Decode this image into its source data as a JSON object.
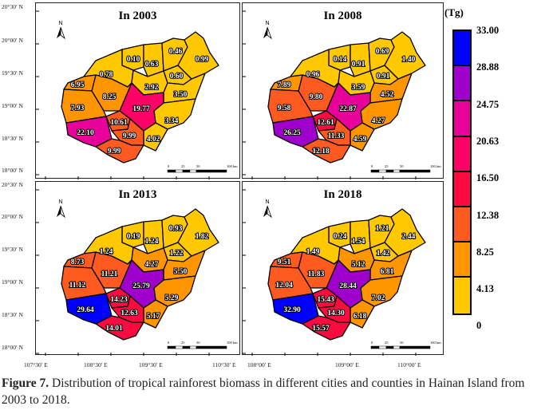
{
  "legend": {
    "unit": "(Tg)",
    "ticks": [
      "33.00",
      "28.88",
      "24.75",
      "20.63",
      "16.50",
      "12.38",
      "8.25",
      "4.13",
      "0"
    ],
    "bins": [
      {
        "max": 4.13,
        "color": "#FFC800"
      },
      {
        "max": 8.25,
        "color": "#FF9500"
      },
      {
        "max": 12.38,
        "color": "#FF5A1F"
      },
      {
        "max": 16.5,
        "color": "#FF0A40"
      },
      {
        "max": 20.63,
        "color": "#FF0066"
      },
      {
        "max": 24.75,
        "color": "#E8009A"
      },
      {
        "max": 28.88,
        "color": "#A000CC"
      },
      {
        "max": 33.0,
        "color": "#0000FF"
      }
    ]
  },
  "north_label": "N",
  "scale_labels": [
    "0",
    "25",
    "50",
    "100 km"
  ],
  "lat_labels": [
    "20°30′ N",
    "20°00′ N",
    "19°30′ N",
    "19°00′ N",
    "18°30′ N",
    "18°00′ N"
  ],
  "lon_labels_left": [
    "107°30′ E",
    "108°30′ E",
    "109°30′ E",
    "110°30′ E"
  ],
  "lon_labels_right": [
    "108°00′ E",
    "109°00′ E",
    "110°00′ E"
  ],
  "panels": [
    {
      "title": "In 2003",
      "values": [
        "0.10",
        "0.63",
        "0.46",
        "0.99",
        "0.78",
        "0.60",
        "2.92",
        "3.50",
        "3.34",
        "4.02",
        "19.77",
        "8.25",
        "6.95",
        "7.93",
        "22.10",
        "10.61",
        "9.99",
        "9.99"
      ]
    },
    {
      "title": "In 2008",
      "values": [
        "0.14",
        "0.91",
        "0.69",
        "1.40",
        "0.96",
        "0.91",
        "3.59",
        "4.52",
        "4.27",
        "4.59",
        "22.87",
        "9.80",
        "7.89",
        "9.58",
        "26.25",
        "12.61",
        "11.33",
        "12.18"
      ]
    },
    {
      "title": "In 2013",
      "values": [
        "0.19",
        "1.24",
        "0.93",
        "1.82",
        "1.24",
        "1.22",
        "4.27",
        "5.50",
        "5.29",
        "5.17",
        "25.79",
        "11.21",
        "8.73",
        "11.12",
        "29.64",
        "14.23",
        "12.63",
        "14.01"
      ]
    },
    {
      "title": "In 2018",
      "values": [
        "0.24",
        "1.54",
        "1.21",
        "2.44",
        "1.49",
        "1.42",
        "5.12",
        "6.81",
        "7.02",
        "6.18",
        "28.44",
        "11.83",
        "9.51",
        "12.04",
        "32.90",
        "15.43",
        "14.30",
        "15.57"
      ]
    }
  ],
  "caption": {
    "label": "Figure 7.",
    "text": " Distribution of tropical rainforest biomass in different cities and counties in Hainan Island from 2003 to 2018."
  }
}
